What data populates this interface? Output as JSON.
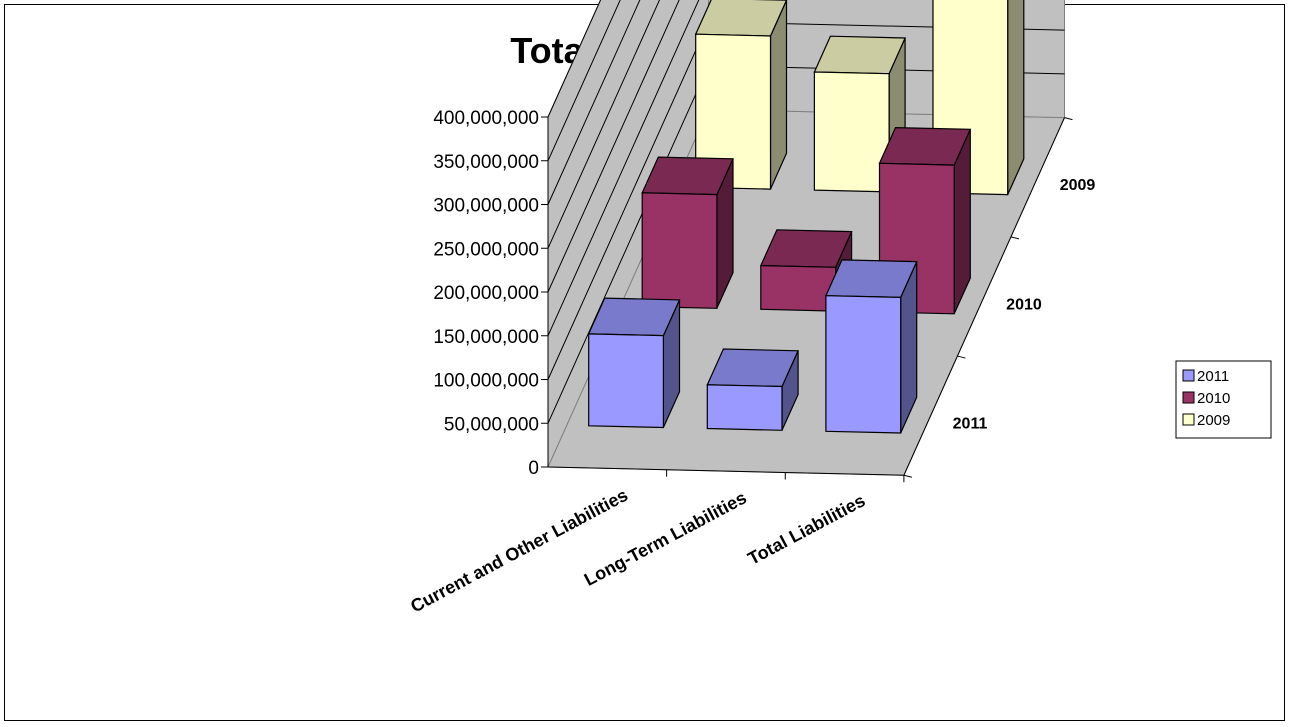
{
  "chart_data": {
    "type": "bar",
    "title": "Total Liabilities",
    "categories": [
      "Current and Other Liabilities",
      "Long-Term Liabilities",
      "Total Liabilities"
    ],
    "series": [
      {
        "name": "2011",
        "values": [
          105000000,
          50000000,
          155000000
        ],
        "color": "#9999ff"
      },
      {
        "name": "2010",
        "values": [
          130000000,
          50000000,
          170000000
        ],
        "color": "#993366"
      },
      {
        "name": "2009",
        "values": [
          175000000,
          135000000,
          340000000
        ],
        "color": "#ffffcc"
      }
    ],
    "depth_labels": [
      "2011",
      "2010",
      "2009"
    ],
    "ylim": [
      0,
      400000000
    ],
    "yticks": [
      "0",
      "50,000,000",
      "100,000,000",
      "150,000,000",
      "200,000,000",
      "250,000,000",
      "300,000,000",
      "350,000,000",
      "400,000,000"
    ],
    "ytick_values": [
      0,
      50000000,
      100000000,
      150000000,
      200000000,
      250000000,
      300000000,
      350000000,
      400000000
    ],
    "grid": true,
    "legend_position": "right"
  }
}
